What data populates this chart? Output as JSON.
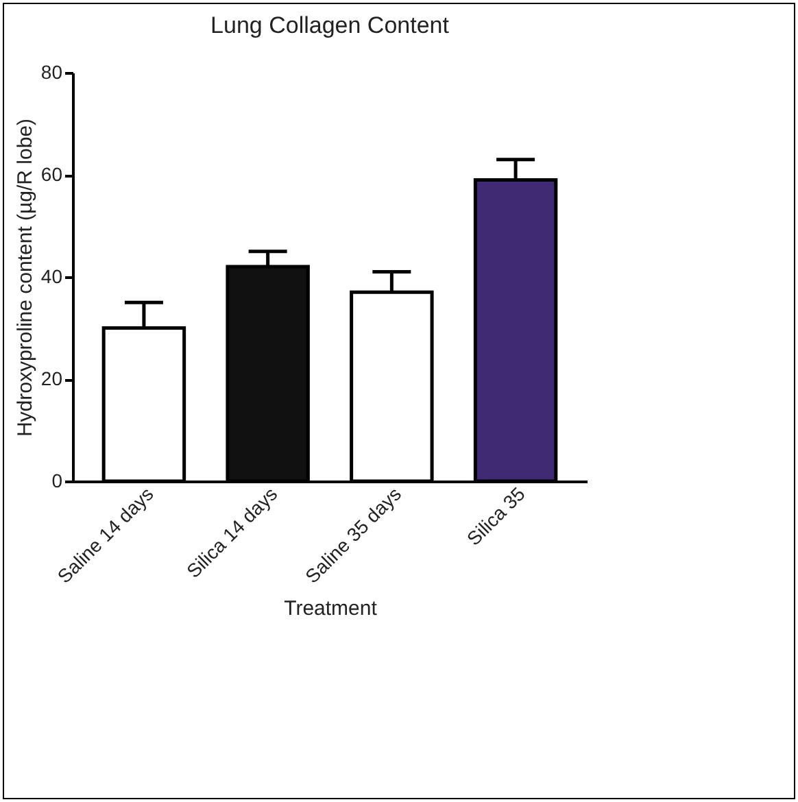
{
  "chart_data": {
    "type": "bar",
    "title": "Lung Collagen Content",
    "xlabel": "Treatment",
    "ylabel": "Hydroxyproline content (µg/R lobe)",
    "categories": [
      "Saline 14 days",
      "Silica 14 days",
      "Saline 35 days",
      "Silica 35"
    ],
    "values": [
      30,
      42,
      37,
      59
    ],
    "colors": [
      "#ffffff",
      "#111111",
      "#ffffff",
      "#3f2a73"
    ],
    "errors": [
      [
        30,
        35
      ],
      [
        42,
        45
      ],
      [
        37,
        41
      ],
      [
        59,
        63
      ]
    ],
    "ylim": [
      0,
      80
    ],
    "yticks": [
      0,
      20,
      40,
      60,
      80
    ],
    "grid": false
  }
}
